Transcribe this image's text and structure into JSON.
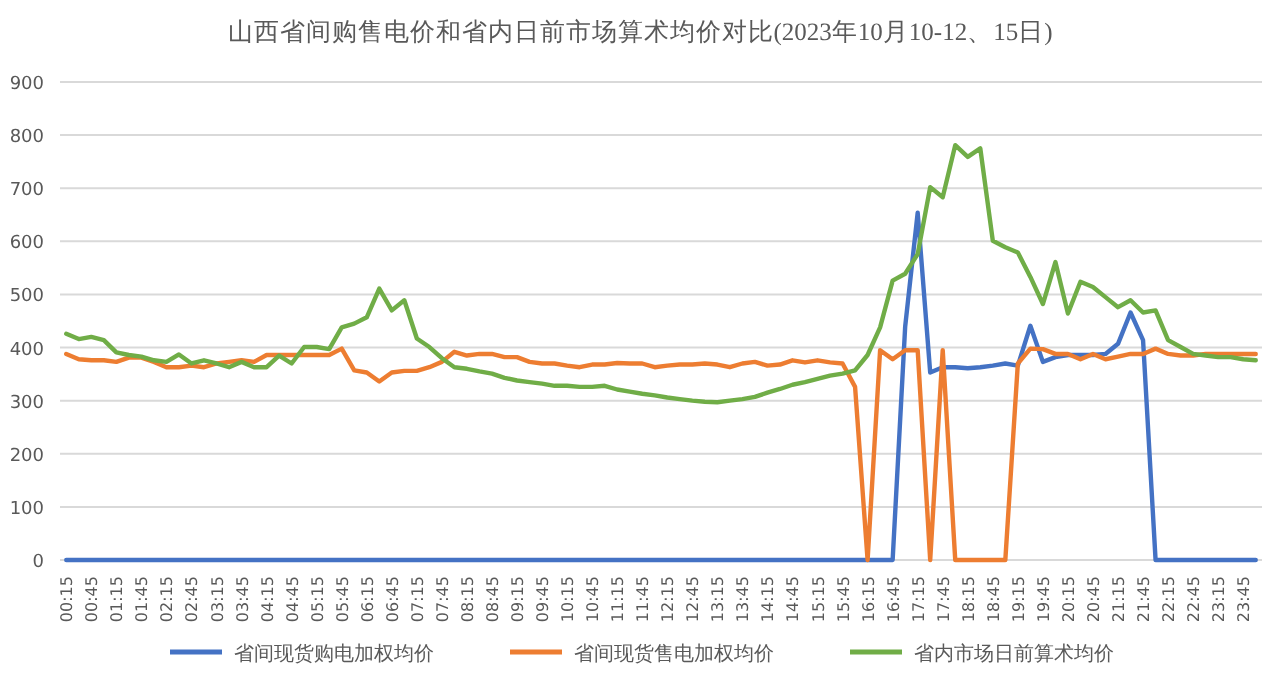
{
  "chart_data": {
    "type": "line",
    "title": "山西省间购售电价和省内日前市场算术均价对比(2023年10月10-12、15日)",
    "categories": [
      "00:15",
      null,
      "00:45",
      null,
      "01:15",
      null,
      "01:45",
      null,
      "02:15",
      null,
      "02:45",
      null,
      "03:15",
      null,
      "03:45",
      null,
      "04:15",
      null,
      "04:45",
      null,
      "05:15",
      null,
      "05:45",
      null,
      "06:15",
      null,
      "06:45",
      null,
      "07:15",
      null,
      "07:45",
      null,
      "08:15",
      null,
      "08:45",
      null,
      "09:15",
      null,
      "09:45",
      null,
      "10:15",
      null,
      "10:45",
      null,
      "11:15",
      null,
      "11:45",
      null,
      "12:15",
      null,
      "12:45",
      null,
      "13:15",
      null,
      "13:45",
      null,
      "14:15",
      null,
      "14:45",
      null,
      "15:15",
      null,
      "15:45",
      null,
      "16:15",
      null,
      "16:45",
      null,
      "17:15",
      null,
      "17:45",
      null,
      "18:15",
      null,
      "18:45",
      null,
      "19:15",
      null,
      "19:45",
      null,
      "20:15",
      null,
      "20:45",
      null,
      "21:15",
      null,
      "21:45",
      null,
      "22:15",
      null,
      "22:45",
      null,
      "23:15",
      null,
      "23:45",
      null
    ],
    "series": [
      {
        "name": "省间现货购电加权均价",
        "color": "#4472c4",
        "values": [
          0,
          0,
          0,
          0,
          0,
          0,
          0,
          0,
          0,
          0,
          0,
          0,
          0,
          0,
          0,
          0,
          0,
          0,
          0,
          0,
          0,
          0,
          0,
          0,
          0,
          0,
          0,
          0,
          0,
          0,
          0,
          0,
          0,
          0,
          0,
          0,
          0,
          0,
          0,
          0,
          0,
          0,
          0,
          0,
          0,
          0,
          0,
          0,
          0,
          0,
          0,
          0,
          0,
          0,
          0,
          0,
          0,
          0,
          0,
          0,
          0,
          0,
          0,
          0,
          0,
          0,
          0,
          439,
          654,
          353,
          363,
          363,
          361,
          363,
          366,
          370,
          366,
          441,
          373,
          382,
          386,
          386,
          386,
          388,
          407,
          466,
          414,
          0,
          0,
          0,
          0,
          0,
          0,
          0,
          0,
          0
        ]
      },
      {
        "name": "省间现货售电加权均价",
        "color": "#ed7d31",
        "values": [
          388,
          378,
          376,
          376,
          373,
          381,
          381,
          373,
          363,
          363,
          366,
          363,
          370,
          373,
          376,
          373,
          386,
          386,
          386,
          386,
          386,
          386,
          398,
          357,
          353,
          336,
          353,
          356,
          356,
          363,
          373,
          392,
          385,
          388,
          388,
          382,
          382,
          373,
          370,
          370,
          366,
          363,
          368,
          368,
          371,
          370,
          370,
          363,
          366,
          368,
          368,
          370,
          368,
          363,
          370,
          373,
          366,
          368,
          376,
          372,
          376,
          372,
          370,
          326,
          0,
          395,
          378,
          395,
          395,
          0,
          395,
          0,
          0,
          0,
          0,
          0,
          370,
          398,
          397,
          388,
          388,
          378,
          388,
          378,
          383,
          388,
          388,
          398,
          388,
          385,
          385,
          388,
          388,
          388,
          388,
          388
        ]
      },
      {
        "name": "省内市场日前算术均价",
        "color": "#70ad47",
        "values": [
          426,
          416,
          420,
          414,
          391,
          386,
          383,
          376,
          373,
          387,
          370,
          376,
          370,
          363,
          373,
          363,
          363,
          385,
          370,
          401,
          401,
          397,
          438,
          445,
          457,
          511,
          470,
          489,
          417,
          401,
          380,
          363,
          360,
          355,
          351,
          343,
          338,
          335,
          332,
          328,
          328,
          326,
          326,
          328,
          321,
          317,
          313,
          310,
          306,
          303,
          300,
          298,
          297,
          300,
          303,
          307,
          315,
          322,
          330,
          335,
          341,
          347,
          351,
          357,
          386,
          438,
          526,
          539,
          576,
          702,
          683,
          781,
          759,
          775,
          601,
          589,
          579,
          533,
          482,
          561,
          464,
          524,
          514,
          495,
          476,
          489,
          466,
          470,
          414,
          401,
          388,
          385,
          382,
          382,
          378,
          376
        ]
      }
    ],
    "ylim": [
      0,
      900
    ],
    "yticks": [
      0,
      100,
      200,
      300,
      400,
      500,
      600,
      700,
      800,
      900
    ],
    "grid": "y",
    "legend": "bottom",
    "marker": "none",
    "line_style": "solid"
  }
}
